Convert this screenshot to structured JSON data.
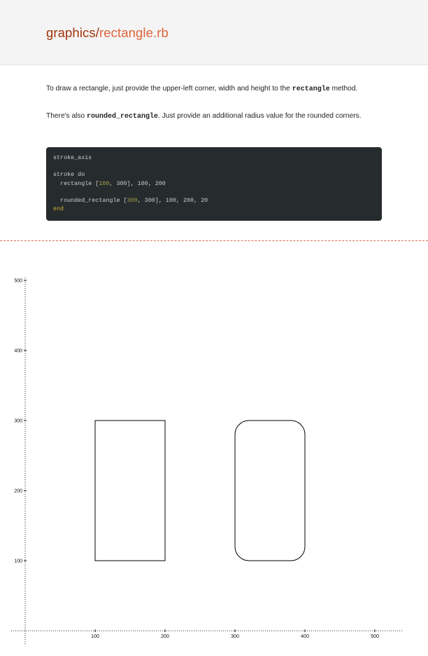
{
  "header": {
    "title_dir": "graphics/",
    "title_file": "rectangle.rb"
  },
  "intro": {
    "p1_before": "To draw a rectangle, just provide the upper-left corner, width and height to the ",
    "p1_code": "rectangle",
    "p1_after": " method.",
    "p2_before": "There's also ",
    "p2_code": "rounded_rectangle",
    "p2_after": ". Just provide an additional radius value for the rounded corners."
  },
  "code": {
    "line1": "stroke_axis",
    "line3": "stroke do",
    "line4_a": "  rectangle [",
    "line4_n1": "100",
    "line4_b": ", 300], 100, 200",
    "line6_a": "  rounded_rectangle [",
    "line6_n1": "300",
    "line6_b": ", 300], 100, 200, 20",
    "line7": "end"
  },
  "chart_data": {
    "type": "diagram",
    "x_ticks": [
      100,
      200,
      300,
      400,
      500
    ],
    "y_ticks": [
      100,
      200,
      300,
      400,
      500
    ],
    "shapes": [
      {
        "kind": "rectangle",
        "point": [
          100,
          300
        ],
        "width": 100,
        "height": 200
      },
      {
        "kind": "rounded_rectangle",
        "point": [
          300,
          300
        ],
        "width": 100,
        "height": 200,
        "radius": 20
      }
    ]
  },
  "colors": {
    "title_dir": "#a1320b",
    "title_file": "#e0643c",
    "code_bg": "#262b2d",
    "divider": "#d66f4a"
  }
}
